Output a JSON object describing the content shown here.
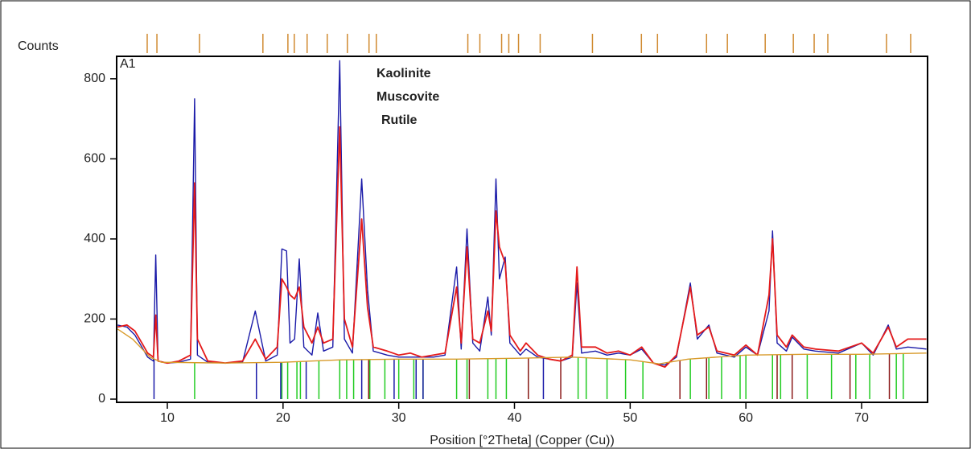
{
  "chart_data": {
    "type": "line",
    "y_label": "Counts",
    "x_label": "Position [°2Theta] (Copper (Cu))",
    "panel_label": "A1",
    "xlim": [
      5.62,
      75.7
    ],
    "ylim": [
      -8,
      856
    ],
    "xticks": [
      10,
      20,
      30,
      40,
      50,
      60,
      70
    ],
    "yticks": [
      0,
      200,
      400,
      600,
      800
    ],
    "x": [
      5.7,
      6.5,
      7.2,
      7.8,
      8.3,
      8.8,
      9.0,
      9.2,
      10,
      11,
      12.0,
      12.36,
      12.6,
      13.5,
      15,
      16.5,
      17.6,
      18.5,
      19.5,
      19.9,
      20.3,
      20.6,
      21.0,
      21.4,
      21.8,
      22.5,
      23.0,
      23.5,
      24.3,
      24.9,
      25.3,
      26.0,
      26.8,
      27.3,
      27.8,
      29,
      30,
      31,
      32,
      33,
      34,
      35.0,
      35.4,
      35.9,
      36.4,
      37.0,
      37.7,
      38.0,
      38.4,
      38.7,
      39.2,
      39.6,
      40.5,
      41,
      42,
      43,
      44,
      45,
      45.4,
      45.8,
      47,
      48,
      49,
      50,
      51,
      52,
      53,
      54,
      55.2,
      55.8,
      56.8,
      57.5,
      59,
      60,
      61,
      62.0,
      62.3,
      62.7,
      63.5,
      64,
      65,
      66,
      68,
      70,
      71,
      72.3,
      73,
      74,
      75.6
    ],
    "series": [
      {
        "color": "#1a1aa8",
        "values": [
          185,
          180,
          160,
          130,
          105,
          95,
          360,
          95,
          90,
          92,
          100,
          750,
          110,
          92,
          90,
          92,
          220,
          95,
          110,
          375,
          370,
          140,
          150,
          350,
          130,
          110,
          215,
          120,
          130,
          845,
          150,
          115,
          550,
          275,
          120,
          110,
          105,
          105,
          105,
          105,
          110,
          330,
          125,
          425,
          140,
          120,
          255,
          160,
          550,
          300,
          355,
          140,
          110,
          125,
          105,
          100,
          95,
          105,
          290,
          115,
          120,
          110,
          115,
          110,
          125,
          90,
          85,
          105,
          290,
          150,
          185,
          115,
          105,
          130,
          110,
          220,
          420,
          140,
          120,
          155,
          125,
          120,
          115,
          140,
          110,
          185,
          125,
          130,
          125
        ]
      },
      {
        "color": "#e41a1a",
        "values": [
          180,
          185,
          170,
          140,
          115,
          105,
          210,
          95,
          90,
          95,
          110,
          540,
          150,
          95,
          90,
          95,
          150,
          100,
          130,
          300,
          280,
          260,
          250,
          280,
          180,
          140,
          180,
          140,
          150,
          680,
          200,
          130,
          450,
          230,
          130,
          120,
          110,
          115,
          105,
          110,
          115,
          280,
          140,
          380,
          150,
          140,
          220,
          170,
          470,
          380,
          340,
          160,
          120,
          140,
          110,
          100,
          95,
          110,
          330,
          130,
          130,
          115,
          120,
          110,
          130,
          90,
          80,
          110,
          280,
          160,
          180,
          120,
          110,
          135,
          110,
          260,
          400,
          160,
          130,
          160,
          130,
          125,
          120,
          140,
          115,
          180,
          130,
          150,
          150
        ]
      },
      {
        "color": "#d89a2a",
        "x": [
          5.7,
          7,
          8.5,
          9.5,
          15,
          20,
          25,
          30,
          35,
          40,
          45,
          50,
          52.5,
          55,
          60,
          65,
          70,
          75.6
        ],
        "values": [
          175,
          150,
          105,
          92,
          90,
          92,
          98,
          100,
          100,
          102,
          105,
          98,
          88,
          100,
          110,
          112,
          112,
          115
        ]
      }
    ],
    "phases": [
      {
        "name": "Kaolinite",
        "color": "#22cc22",
        "positions": [
          12.36,
          19.9,
          20.4,
          21.2,
          21.5,
          23.1,
          24.9,
          25.5,
          26.1,
          27.5,
          28.8,
          30.0,
          31.3,
          32.1,
          35.0,
          35.9,
          37.7,
          38.4,
          39.3,
          41.2,
          45.5,
          46.2,
          48.0,
          49.6,
          51.1,
          55.2,
          56.8,
          57.9,
          59.5,
          60.0,
          62.3,
          63.0,
          65.3,
          67.4,
          69.5,
          70.7,
          73.0,
          73.6
        ]
      },
      {
        "name": "Muscovite",
        "color": "#1a1aa8",
        "positions": [
          8.85,
          17.7,
          19.8,
          22.0,
          26.8,
          29.6,
          31.5,
          32.1,
          42.5
        ]
      },
      {
        "name": "Rutile",
        "color": "#8b1a1a",
        "positions": [
          27.4,
          36.1,
          41.2,
          44.0,
          54.3,
          56.6,
          62.7,
          64.0,
          69.0,
          72.4
        ]
      }
    ],
    "top_markers": {
      "color": "#d08a30",
      "positions": [
        8.26,
        9.1,
        12.78,
        18.26,
        20.42,
        20.97,
        22.08,
        23.82,
        25.56,
        27.43,
        28.06,
        35.97,
        37.01,
        38.89,
        39.51,
        40.35,
        42.22,
        46.74,
        50.97,
        52.36,
        56.6,
        58.4,
        61.67,
        64.1,
        65.9,
        67.08,
        72.15,
        74.24
      ]
    }
  }
}
